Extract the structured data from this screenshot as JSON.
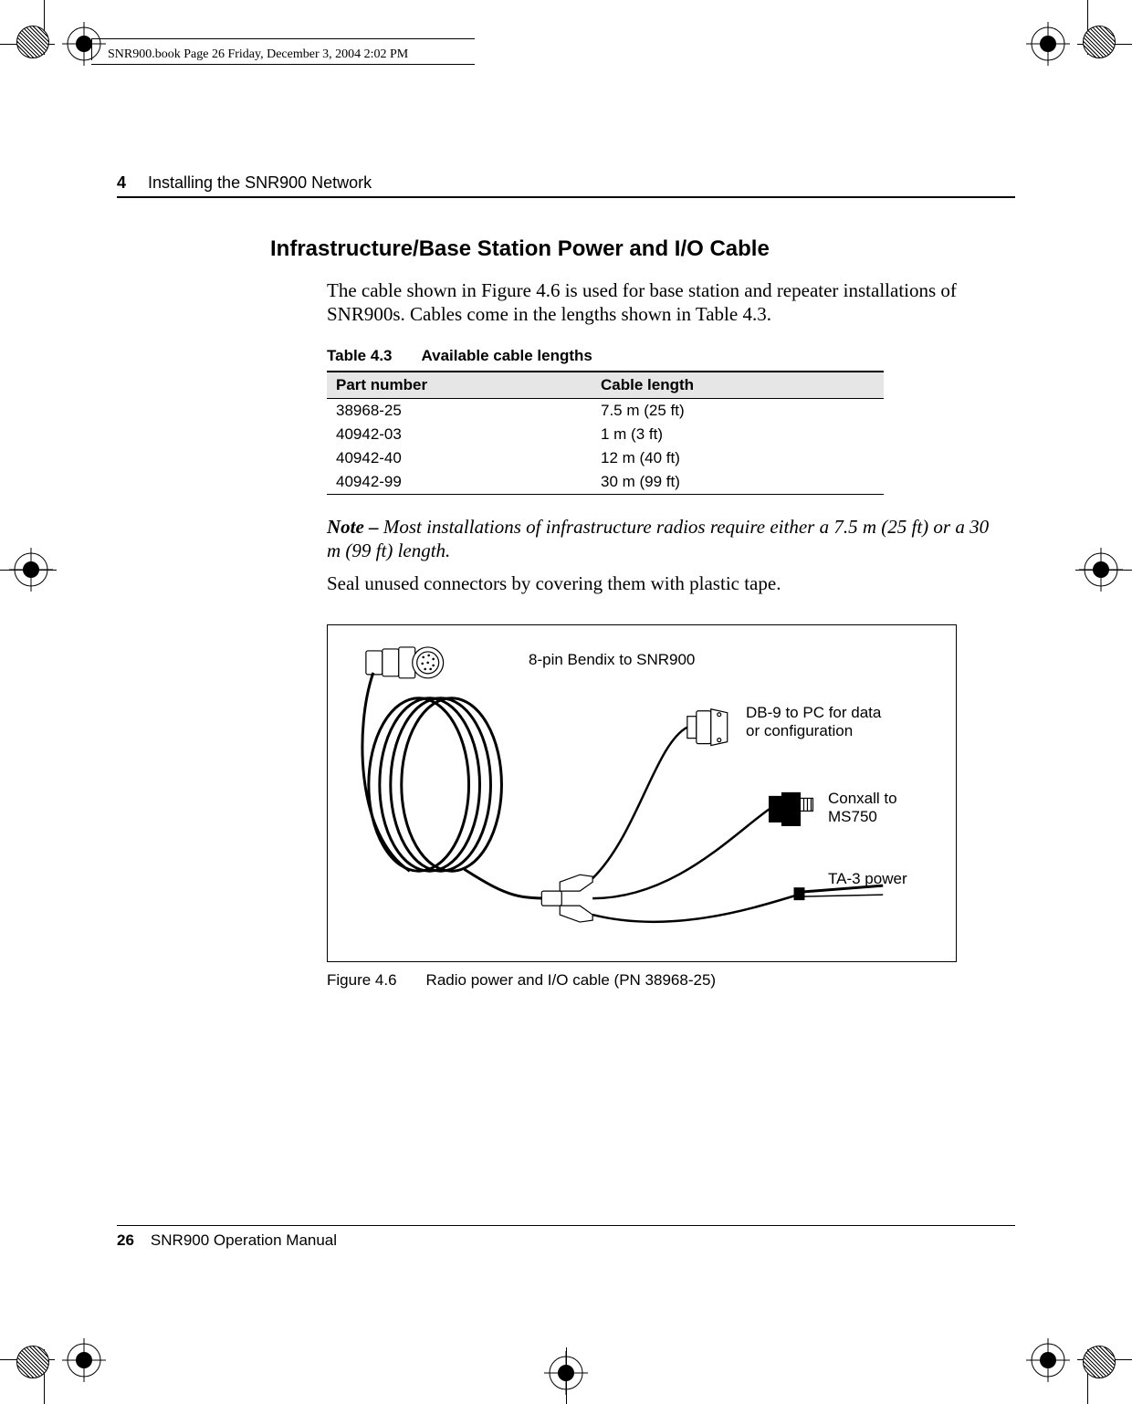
{
  "meta_line": "SNR900.book  Page 26  Friday, December 3, 2004  2:02 PM",
  "running_head": {
    "chapter_number": "4",
    "chapter_title": "Installing the SNR900 Network"
  },
  "section_heading": "Infrastructure/Base Station Power and I/O Cable",
  "intro_paragraph": "The cable shown in Figure 4.6 is used for base station and repeater installations of SNR900s. Cables come in the lengths shown in Table 4.3.",
  "table": {
    "caption_num": "Table 4.3",
    "caption_text": "Available cable lengths",
    "columns": [
      "Part number",
      "Cable length"
    ],
    "rows": [
      [
        "38968-25",
        "7.5 m (25 ft)"
      ],
      [
        "40942-03",
        "1 m (3 ft)"
      ],
      [
        "40942-40",
        "12 m (40 ft)"
      ],
      [
        "40942-99",
        "30 m (99 ft)"
      ]
    ],
    "col_widths": [
      "290px",
      "320px"
    ],
    "header_bg": "#e6e6e6"
  },
  "note_prefix": "Note – ",
  "note_body": "Most installations of infrastructure radios require either a 7.5 m (25 ft) or a 30 m (99 ft) length.",
  "seal_paragraph": "Seal unused connectors by covering them with plastic tape.",
  "figure": {
    "labels": {
      "bendix": "8-pin Bendix to SNR900",
      "db9_l1": "DB-9 to PC for data",
      "db9_l2": "or configuration",
      "conxall_l1": "Conxall to",
      "conxall_l2": "MS750",
      "ta3": "TA-3 power"
    },
    "caption_num": "Figure 4.6",
    "caption_text": "Radio power and I/O cable (PN 38968-25)"
  },
  "footer": {
    "page_number": "26",
    "manual": "SNR900 Operation Manual"
  },
  "colors": {
    "text": "#000000",
    "bg": "#ffffff",
    "rule": "#000000",
    "table_header_bg": "#e6e6e6"
  }
}
